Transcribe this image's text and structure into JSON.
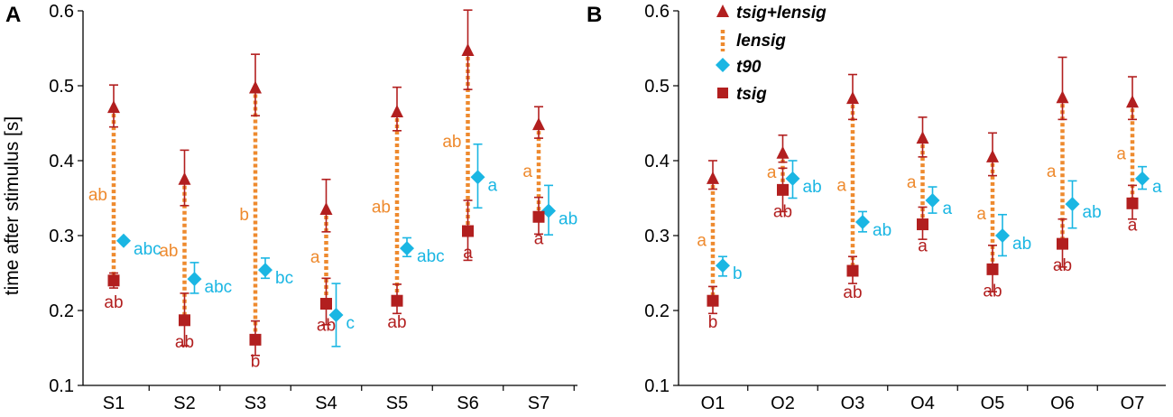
{
  "colors": {
    "tsig": "#b21f1f",
    "t90": "#1ab6e3",
    "lensig": "#ee8a2e",
    "axis": "#000000"
  },
  "legend": {
    "tsig_lensig": "tsig+lensig",
    "lensig": "lensig",
    "t90": "t90",
    "tsig": "tsig"
  },
  "chart_data": [
    {
      "type": "scatter",
      "panel_label": "A",
      "ylabel": "time after stimulus  [s]",
      "ylim": [
        0.1,
        0.6
      ],
      "yticks": [
        "0.1",
        "0.2",
        "0.3",
        "0.4",
        "0.5",
        "0.6"
      ],
      "categories": [
        "S1",
        "S2",
        "S3",
        "S4",
        "S5",
        "S6",
        "S7"
      ],
      "series": [
        {
          "name": "tsig+lensig",
          "values": [
            0.471,
            0.375,
            0.497,
            0.335,
            0.465,
            0.547,
            0.448
          ],
          "err_low": [
            0.445,
            0.34,
            0.46,
            0.305,
            0.44,
            0.495,
            0.43
          ],
          "err_high": [
            0.501,
            0.414,
            0.542,
            0.375,
            0.498,
            0.601,
            0.472
          ]
        },
        {
          "name": "t90",
          "values": [
            0.293,
            0.242,
            0.254,
            0.194,
            0.283,
            0.378,
            0.333
          ],
          "err_low": [
            0.293,
            0.223,
            0.243,
            0.152,
            0.272,
            0.337,
            0.301
          ],
          "err_high": [
            0.293,
            0.264,
            0.27,
            0.236,
            0.297,
            0.422,
            0.367
          ]
        },
        {
          "name": "tsig",
          "values": [
            0.24,
            0.187,
            0.161,
            0.209,
            0.213,
            0.306,
            0.325
          ],
          "err_low": [
            0.23,
            0.153,
            0.14,
            0.181,
            0.196,
            0.267,
            0.302
          ],
          "err_high": [
            0.25,
            0.223,
            0.186,
            0.243,
            0.235,
            0.347,
            0.351
          ]
        }
      ],
      "letters": {
        "lensig": [
          "ab",
          "ab",
          "b",
          "a",
          "ab",
          "ab",
          "a"
        ],
        "t90": [
          "abc",
          "abc",
          "bc",
          "c",
          "abc",
          "a",
          "ab"
        ],
        "tsig": [
          "ab",
          "ab",
          "b",
          "ab",
          "ab",
          "a",
          "a"
        ]
      }
    },
    {
      "type": "scatter",
      "panel_label": "B",
      "ylabel": "",
      "ylim": [
        0.1,
        0.6
      ],
      "yticks": [
        "0.1",
        "0.2",
        "0.3",
        "0.4",
        "0.5",
        "0.6"
      ],
      "categories": [
        "O1",
        "O2",
        "O3",
        "O4",
        "O5",
        "O6",
        "O7"
      ],
      "series": [
        {
          "name": "tsig+lensig",
          "values": [
            0.376,
            0.41,
            0.483,
            0.43,
            0.405,
            0.484,
            0.478
          ],
          "err_low": [
            0.362,
            0.398,
            0.455,
            0.405,
            0.38,
            0.455,
            0.455
          ],
          "err_high": [
            0.4,
            0.434,
            0.515,
            0.458,
            0.437,
            0.538,
            0.512
          ]
        },
        {
          "name": "t90",
          "values": [
            0.26,
            0.376,
            0.318,
            0.347,
            0.3,
            0.342,
            0.376
          ],
          "err_low": [
            0.246,
            0.35,
            0.305,
            0.33,
            0.273,
            0.31,
            0.362
          ],
          "err_high": [
            0.272,
            0.4,
            0.332,
            0.365,
            0.328,
            0.373,
            0.392
          ]
        },
        {
          "name": "tsig",
          "values": [
            0.213,
            0.361,
            0.253,
            0.315,
            0.255,
            0.289,
            0.343
          ],
          "err_low": [
            0.196,
            0.332,
            0.236,
            0.295,
            0.225,
            0.258,
            0.322
          ],
          "err_high": [
            0.232,
            0.39,
            0.272,
            0.338,
            0.287,
            0.322,
            0.367
          ]
        }
      ],
      "letters": {
        "lensig": [
          "a",
          "a",
          "a",
          "a",
          "a",
          "a",
          "a"
        ],
        "t90": [
          "b",
          "ab",
          "ab",
          "a",
          "ab",
          "ab",
          "a"
        ],
        "tsig": [
          "b",
          "ab",
          "ab",
          "a",
          "ab",
          "ab",
          "a"
        ]
      }
    }
  ]
}
